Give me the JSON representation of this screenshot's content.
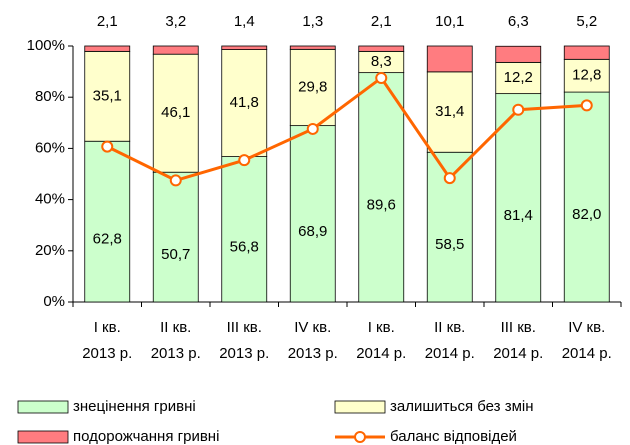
{
  "chart_data": {
    "type": "stacked_bar_line",
    "categories": [
      [
        "I кв.",
        "2013 р."
      ],
      [
        "II кв.",
        "2013 р."
      ],
      [
        "III кв.",
        "2013 р."
      ],
      [
        "IV кв.",
        "2013 р."
      ],
      [
        "I кв.",
        "2014 р."
      ],
      [
        "II кв.",
        "2014 р."
      ],
      [
        "III кв.",
        "2014 р."
      ],
      [
        "IV кв.",
        "2014 р."
      ]
    ],
    "series": [
      {
        "name": "знецінення гривні",
        "color": "#ccffcc",
        "values": [
          62.8,
          50.7,
          56.8,
          68.9,
          89.6,
          58.5,
          81.4,
          82.0
        ],
        "value_labels": [
          "62,8",
          "50,7",
          "56,8",
          "68,9",
          "89,6",
          "58,5",
          "81,4",
          "82,0"
        ]
      },
      {
        "name": "залишиться без змін",
        "color": "#ffffcc",
        "values": [
          35.1,
          46.1,
          41.8,
          29.8,
          8.3,
          31.4,
          12.2,
          12.8
        ],
        "value_labels": [
          "35,1",
          "46,1",
          "41,8",
          "29,8",
          "8,3",
          "31,4",
          "12,2",
          "12,8"
        ]
      },
      {
        "name": "подорожчання гривні",
        "color": "#ff7c80",
        "values": [
          2.1,
          3.2,
          1.4,
          1.3,
          2.1,
          10.1,
          6.3,
          5.2
        ],
        "value_labels": [
          "2,1",
          "3,2",
          "1,4",
          "1,3",
          "2,1",
          "10,1",
          "6,3",
          "5,2"
        ]
      },
      {
        "name": "баланс відповідей",
        "type": "line",
        "color": "#ff6600",
        "values": [
          60.7,
          47.5,
          55.4,
          67.6,
          87.5,
          48.4,
          75.1,
          76.8
        ]
      }
    ],
    "ylim": [
      0,
      100
    ],
    "yticks": [
      {
        "value": 0,
        "label": "0%"
      },
      {
        "value": 20,
        "label": "20%"
      },
      {
        "value": 40,
        "label": "40%"
      },
      {
        "value": 60,
        "label": "60%"
      },
      {
        "value": 80,
        "label": "80%"
      },
      {
        "value": 100,
        "label": "100%"
      }
    ]
  }
}
